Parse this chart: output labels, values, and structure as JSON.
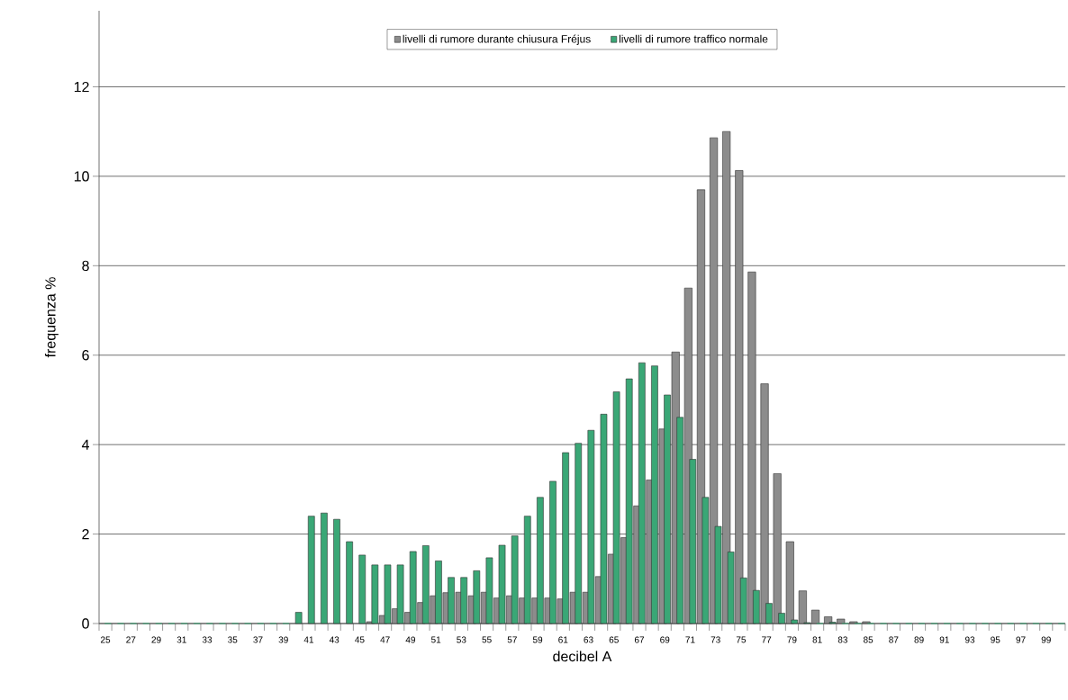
{
  "chart_data": {
    "type": "bar",
    "xlabel": "decibel A",
    "ylabel": "frequenza %",
    "categories": [
      "25",
      null,
      "27",
      null,
      "29",
      null,
      "31",
      null,
      "33",
      null,
      "35",
      null,
      "37",
      null,
      "39",
      null,
      "41",
      null,
      "43",
      null,
      "45",
      null,
      "47",
      null,
      "49",
      null,
      "51",
      null,
      "53",
      null,
      "55",
      null,
      "57",
      null,
      "59",
      null,
      "61",
      null,
      "63",
      null,
      "65",
      null,
      "67",
      null,
      "69",
      null,
      "71",
      null,
      "73",
      null,
      "75",
      null,
      "77",
      null,
      "79",
      null,
      "81",
      null,
      "83",
      null,
      "85",
      null,
      "87",
      null,
      "89",
      null,
      "91",
      null,
      "93",
      null,
      "95",
      null,
      "97",
      null,
      "99",
      null
    ],
    "series": [
      {
        "name": "livelli di rumore durante chiusura Fréjus",
        "color": "#8c8c8c",
        "values": [
          0,
          0,
          0,
          0,
          0,
          0,
          0,
          0,
          0,
          0,
          0,
          0,
          0,
          0,
          0,
          0,
          0,
          0,
          0,
          0,
          0,
          0.04,
          0.18,
          0.33,
          0.25,
          0.47,
          0.62,
          0.69,
          0.7,
          0.62,
          0.7,
          0.57,
          0.62,
          0.57,
          0.57,
          0.57,
          0.55,
          0.7,
          0.7,
          1.05,
          1.55,
          1.92,
          2.63,
          3.21,
          4.35,
          6.07,
          7.5,
          9.7,
          10.86,
          11.0,
          10.13,
          7.86,
          5.36,
          3.35,
          1.83,
          0.73,
          0.3,
          0.15,
          0.1,
          0.04,
          0.04,
          0,
          0,
          0,
          0,
          0,
          0,
          0,
          0,
          0,
          0,
          0,
          0,
          0,
          0,
          0
        ]
      },
      {
        "name": "livelli di rumore traffico normale",
        "color": "#3aa776",
        "values": [
          0,
          0,
          0,
          0,
          0,
          0,
          0,
          0,
          0,
          0,
          0,
          0,
          0,
          0,
          0,
          0.25,
          2.4,
          2.47,
          2.33,
          1.83,
          1.53,
          1.31,
          1.31,
          1.31,
          1.61,
          1.74,
          1.4,
          1.03,
          1.03,
          1.18,
          1.47,
          1.75,
          1.96,
          2.4,
          2.82,
          3.18,
          3.82,
          4.03,
          4.32,
          4.68,
          5.18,
          5.47,
          5.83,
          5.76,
          5.11,
          4.61,
          3.67,
          2.82,
          2.17,
          1.6,
          1.02,
          0.74,
          0.45,
          0.23,
          0.08,
          0.02,
          0,
          0.03,
          0,
          0,
          0,
          0,
          0,
          0,
          0,
          0,
          0,
          0,
          0,
          0,
          0,
          0,
          0,
          0,
          0,
          0
        ]
      }
    ],
    "ylim": [
      0,
      13.7
    ],
    "yticks": [
      0,
      2,
      4,
      6,
      8,
      10,
      12
    ],
    "grid": "y",
    "legend": "top"
  }
}
